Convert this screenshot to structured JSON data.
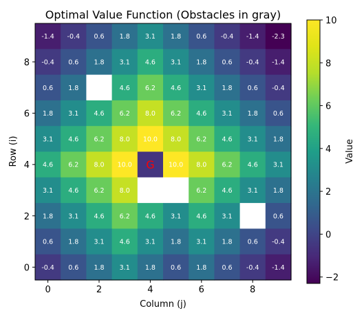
{
  "chart_data": {
    "type": "heatmap",
    "title": "Optimal Value Function (Obstacles in gray)",
    "xlabel": "Column (j)",
    "ylabel": "Row (i)",
    "x_ticks": [
      "0",
      "2",
      "4",
      "6",
      "8"
    ],
    "y_ticks": [
      "0",
      "2",
      "4",
      "6",
      "8"
    ],
    "colorbar": {
      "label": "Value",
      "ticks": [
        "−2",
        "0",
        "2",
        "4",
        "6",
        "8",
        "10"
      ],
      "range": [
        -2.3,
        10.0
      ],
      "colormap": "viridis"
    },
    "goal": {
      "row": 4,
      "col": 4,
      "label": "G",
      "color": "#ff0000"
    },
    "rows_top_to_bottom": [
      [
        "-1.4",
        "-0.4",
        "0.6",
        "1.8",
        "3.1",
        "1.8",
        "0.6",
        "-0.4",
        "-1.4",
        "-2.3"
      ],
      [
        "-0.4",
        "0.6",
        "1.8",
        "3.1",
        "4.6",
        "3.1",
        "1.8",
        "0.6",
        "-0.4",
        "-1.4"
      ],
      [
        "0.6",
        "1.8",
        "",
        "4.6",
        "6.2",
        "4.6",
        "3.1",
        "1.8",
        "0.6",
        "-0.4"
      ],
      [
        "1.8",
        "3.1",
        "4.6",
        "6.2",
        "8.0",
        "6.2",
        "4.6",
        "3.1",
        "1.8",
        "0.6"
      ],
      [
        "3.1",
        "4.6",
        "6.2",
        "8.0",
        "10.0",
        "8.0",
        "6.2",
        "4.6",
        "3.1",
        "1.8"
      ],
      [
        "4.6",
        "6.2",
        "8.0",
        "10.0",
        "",
        "10.0",
        "8.0",
        "6.2",
        "4.6",
        "3.1"
      ],
      [
        "3.1",
        "4.6",
        "6.2",
        "8.0",
        "",
        "",
        "6.2",
        "4.6",
        "3.1",
        "1.8"
      ],
      [
        "1.8",
        "3.1",
        "4.6",
        "6.2",
        "4.6",
        "3.1",
        "4.6",
        "3.1",
        "",
        "0.6"
      ],
      [
        "0.6",
        "1.8",
        "3.1",
        "4.6",
        "3.1",
        "1.8",
        "3.1",
        "1.8",
        "0.6",
        "-0.4"
      ],
      [
        "-0.4",
        "0.6",
        "1.8",
        "3.1",
        "1.8",
        "0.6",
        "1.8",
        "0.6",
        "-0.4",
        "-1.4"
      ]
    ],
    "obstacles_top_to_bottom": [
      [
        2,
        2
      ],
      [
        6,
        4
      ],
      [
        6,
        5
      ],
      [
        7,
        8
      ]
    ]
  }
}
